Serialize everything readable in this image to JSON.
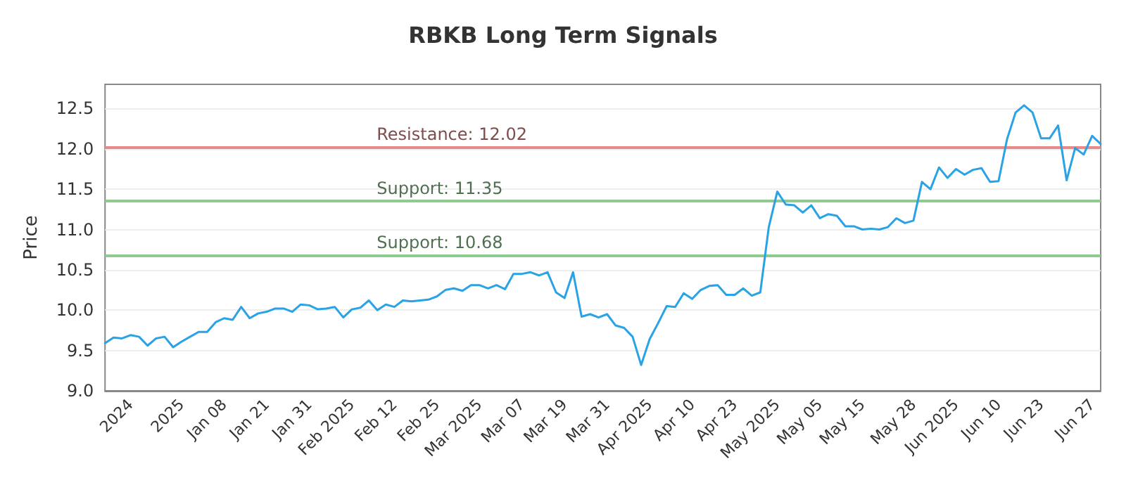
{
  "chart_data": {
    "type": "line",
    "title": "RBKB Long Term Signals",
    "ylabel": "Price",
    "categories": [
      null,
      null,
      null,
      "2024",
      null,
      null,
      null,
      null,
      null,
      "2025",
      null,
      null,
      null,
      null,
      "Jan 08",
      null,
      null,
      null,
      null,
      "Jan 21",
      null,
      null,
      null,
      null,
      "Jan 31",
      null,
      null,
      null,
      null,
      "Feb 2025",
      null,
      null,
      null,
      null,
      "Feb 12",
      null,
      null,
      null,
      null,
      "Feb 25",
      null,
      null,
      null,
      null,
      "Mar 2025",
      null,
      null,
      null,
      null,
      "Mar 07",
      null,
      null,
      null,
      null,
      "Mar 19",
      null,
      null,
      null,
      null,
      "Mar 31",
      null,
      null,
      null,
      null,
      "Apr 2025",
      null,
      null,
      null,
      null,
      "Apr 10",
      null,
      null,
      null,
      null,
      "Apr 23",
      null,
      null,
      null,
      null,
      "May 2025",
      null,
      null,
      null,
      null,
      "May 05",
      null,
      null,
      null,
      null,
      "May 15",
      null,
      null,
      null,
      null,
      null,
      "May 28",
      null,
      null,
      null,
      null,
      "Jun 2025",
      null,
      null,
      null,
      null,
      "Jun 10",
      null,
      null,
      null,
      null,
      "Jun 23",
      null,
      null,
      null,
      null,
      null,
      "Jun 27",
      null
    ],
    "series": [
      {
        "color": "#29a3e6",
        "values": [
          9.59,
          9.66,
          9.65,
          9.69,
          9.67,
          9.56,
          9.65,
          9.67,
          9.54,
          9.61,
          9.67,
          9.73,
          9.73,
          9.85,
          9.9,
          9.88,
          10.04,
          9.9,
          9.96,
          9.98,
          10.02,
          10.02,
          9.98,
          10.07,
          10.06,
          10.01,
          10.02,
          10.04,
          9.91,
          10.01,
          10.03,
          10.12,
          10.0,
          10.07,
          10.04,
          10.12,
          10.11,
          10.12,
          10.13,
          10.17,
          10.25,
          10.27,
          10.24,
          10.31,
          10.31,
          10.27,
          10.31,
          10.26,
          10.45,
          10.45,
          10.47,
          10.43,
          10.47,
          10.22,
          10.15,
          10.47,
          9.92,
          9.95,
          9.91,
          9.95,
          9.81,
          9.78,
          9.67,
          9.32,
          9.64,
          9.84,
          10.05,
          10.04,
          10.21,
          10.14,
          10.25,
          10.3,
          10.31,
          10.19,
          10.19,
          10.27,
          10.18,
          10.22,
          11.03,
          11.47,
          11.31,
          11.3,
          11.21,
          11.3,
          11.14,
          11.19,
          11.17,
          11.04,
          11.04,
          11.0,
          11.01,
          11.0,
          11.03,
          11.14,
          11.08,
          11.11,
          11.59,
          11.5,
          11.77,
          11.64,
          11.75,
          11.68,
          11.74,
          11.76,
          11.59,
          11.6,
          12.12,
          12.45,
          12.54,
          12.45,
          12.13,
          12.13,
          12.29,
          11.61,
          12.01,
          11.93,
          12.16,
          12.06
        ]
      }
    ],
    "ylim": [
      9,
      12.8
    ],
    "yticks": [
      {
        "value": 9,
        "label": "9.0"
      },
      {
        "value": 9.5,
        "label": "9.5"
      },
      {
        "value": 10,
        "label": "10.0"
      },
      {
        "value": 10.5,
        "label": "10.5"
      },
      {
        "value": 11,
        "label": "11.0"
      },
      {
        "value": 11.5,
        "label": "11.5"
      },
      {
        "value": 12,
        "label": "12.0"
      },
      {
        "value": 12.5,
        "label": "12.5"
      }
    ],
    "grid": "y",
    "marker": "none",
    "line_style": "solid",
    "ref_lines": [
      {
        "axis": "y",
        "value": 12.02,
        "label": "Resistance: 12.02",
        "color": "#e88a8a"
      },
      {
        "axis": "y",
        "value": 11.35,
        "label": "Support: 11.35",
        "color": "#8fca8f"
      },
      {
        "axis": "y",
        "value": 10.68,
        "label": "Support: 10.68",
        "color": "#8fca8f"
      }
    ]
  }
}
